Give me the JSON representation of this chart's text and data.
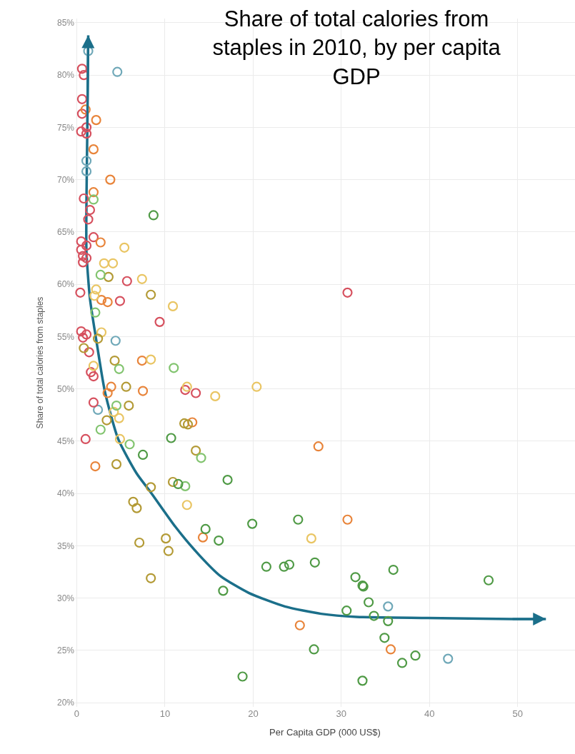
{
  "chart_data": {
    "type": "scatter",
    "title": "Share of total calories from\nstaples in 2010, by per capita\nGDP",
    "xlabel": "Per Capita GDP (000 US$)",
    "ylabel": "Share of total calories from staples",
    "xlim": [
      -0.2,
      56.5
    ],
    "xticks": [
      0,
      10,
      20,
      30,
      40,
      50
    ],
    "ylim": [
      19.6,
      85.4
    ],
    "yticks": [
      {
        "value": 20,
        "label": "20%"
      },
      {
        "value": 25,
        "label": "25%"
      },
      {
        "value": 30,
        "label": "30%"
      },
      {
        "value": 35,
        "label": "35%"
      },
      {
        "value": 40,
        "label": "40%"
      },
      {
        "value": 45,
        "label": "45%"
      },
      {
        "value": 50,
        "label": "50%"
      },
      {
        "value": 55,
        "label": "55%"
      },
      {
        "value": 60,
        "label": "60%"
      },
      {
        "value": 65,
        "label": "65%"
      },
      {
        "value": 70,
        "label": "70%"
      },
      {
        "value": 75,
        "label": "75%"
      },
      {
        "value": 80,
        "label": "80%"
      },
      {
        "value": 85,
        "label": "85%"
      }
    ],
    "grid": true,
    "marker": "circle",
    "series": [
      {
        "color": "#6fa8b8",
        "x": [
          1.3,
          4.6,
          1.1,
          1.1,
          4.4,
          2.4,
          35.3,
          42.1
        ],
        "values": [
          82.3,
          80.3,
          71.8,
          70.8,
          54.6,
          48.0,
          29.2,
          24.2
        ]
      },
      {
        "color": "#d6505e",
        "x": [
          0.6,
          0.8,
          0.6,
          0.6,
          1.1,
          0.5,
          1.1,
          0.8,
          1.5,
          1.3,
          0.5,
          1.9,
          1.1,
          0.5,
          0.7,
          1.1,
          0.7,
          5.7,
          0.4,
          4.9,
          9.4,
          0.5,
          1.1,
          0.7,
          1.4,
          1.6,
          1.9,
          12.3,
          1.9,
          1.0,
          13.5,
          30.7
        ],
        "values": [
          80.6,
          80.0,
          77.7,
          76.3,
          75.0,
          74.6,
          74.4,
          68.2,
          67.1,
          66.2,
          64.1,
          64.5,
          63.7,
          63.3,
          62.7,
          62.5,
          62.1,
          60.3,
          59.2,
          58.4,
          56.4,
          55.5,
          55.2,
          54.9,
          53.5,
          51.6,
          51.2,
          49.9,
          48.7,
          45.2,
          49.6,
          59.2
        ]
      },
      {
        "color": "#e8843a",
        "x": [
          1.0,
          2.2,
          1.9,
          3.8,
          1.9,
          2.7,
          3.5,
          2.8,
          7.4,
          3.9,
          7.5,
          3.5,
          2.1,
          13.1,
          27.4,
          14.3,
          30.7,
          25.3,
          35.6
        ],
        "values": [
          76.7,
          75.7,
          72.9,
          70.0,
          68.8,
          64.0,
          58.3,
          58.5,
          52.7,
          50.2,
          49.8,
          49.6,
          42.6,
          46.8,
          44.5,
          35.8,
          37.5,
          27.4,
          25.1
        ]
      },
      {
        "color": "#e9c563",
        "x": [
          5.4,
          3.1,
          4.1,
          7.4,
          2.2,
          2.0,
          10.9,
          2.8,
          8.4,
          1.9,
          12.5,
          4.2,
          4.8,
          4.9,
          20.4,
          15.7,
          12.5,
          26.6
        ],
        "values": [
          63.5,
          62.0,
          62.0,
          60.5,
          59.5,
          58.9,
          57.9,
          55.4,
          52.8,
          52.2,
          50.2,
          47.8,
          47.2,
          45.2,
          50.2,
          49.3,
          38.9,
          35.7
        ]
      },
      {
        "color": "#b39a35",
        "x": [
          3.6,
          8.4,
          2.4,
          0.8,
          4.3,
          5.6,
          5.9,
          3.4,
          4.5,
          12.2,
          12.6,
          13.5,
          8.4,
          10.9,
          6.4,
          6.8,
          7.1,
          10.1,
          10.4,
          8.4
        ],
        "values": [
          60.7,
          59.0,
          54.8,
          53.9,
          52.7,
          50.2,
          48.4,
          47.0,
          42.8,
          46.7,
          46.6,
          44.1,
          40.6,
          41.1,
          39.2,
          38.6,
          35.3,
          35.7,
          34.5,
          31.9
        ]
      },
      {
        "color": "#82c46f",
        "x": [
          1.9,
          2.7,
          2.1,
          4.8,
          11.0,
          4.5,
          2.7,
          6.0,
          14.1,
          12.3
        ],
        "values": [
          68.1,
          60.9,
          57.3,
          51.9,
          52.0,
          48.4,
          46.1,
          44.7,
          43.4,
          40.7
        ]
      },
      {
        "color": "#4f9a45",
        "x": [
          8.7,
          7.5,
          10.7,
          17.1,
          11.5,
          14.6,
          16.1,
          16.6,
          19.9,
          25.1,
          21.5,
          23.5,
          24.1,
          27.0,
          35.9,
          31.6,
          32.4,
          32.5,
          46.7,
          33.1,
          30.6,
          33.7,
          35.3,
          34.9,
          26.9,
          38.4,
          36.9,
          18.8,
          32.4
        ],
        "values": [
          66.6,
          43.7,
          45.3,
          41.3,
          40.9,
          36.6,
          35.5,
          30.7,
          37.1,
          37.5,
          33.0,
          33.0,
          33.2,
          33.4,
          32.7,
          32.0,
          31.2,
          31.1,
          31.7,
          29.6,
          28.8,
          28.3,
          27.8,
          26.2,
          25.1,
          24.5,
          23.8,
          22.5,
          22.1
        ]
      },
      {
        "type": "line",
        "color": "#1b6f8a",
        "marker": "none",
        "line_style": "solid",
        "x": [
          1.3,
          1.2,
          1.1,
          1.1,
          1.5,
          2.3,
          3.2,
          4.7,
          6.8,
          8.4,
          11.2,
          13.9,
          16.3,
          19.5,
          23.6,
          27.7,
          31.7,
          39.8,
          49.3,
          53.2
        ],
        "values": [
          83.8,
          75.0,
          68.0,
          63.1,
          58.6,
          54.2,
          49.7,
          45.2,
          41.9,
          40.1,
          36.8,
          34.1,
          32.1,
          30.5,
          29.2,
          28.5,
          28.2,
          28.1,
          28.0,
          28.0
        ]
      }
    ]
  }
}
